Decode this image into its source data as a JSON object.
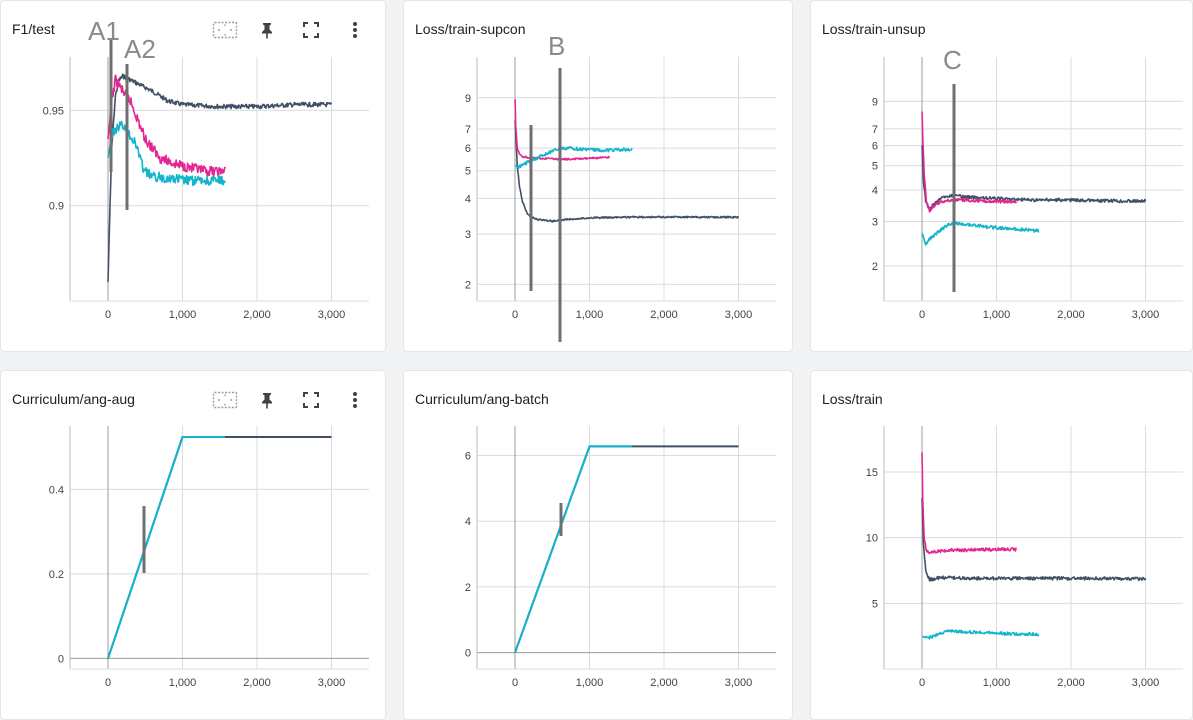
{
  "panels": [
    {
      "title": "F1/test"
    },
    {
      "title": "Loss/train-supcon"
    },
    {
      "title": "Loss/train-unsup"
    },
    {
      "title": "Curriculum/ang-aug"
    },
    {
      "title": "Curriculum/ang-batch"
    },
    {
      "title": "Loss/train"
    }
  ],
  "toolbar_icons": [
    "fit-domain-icon",
    "pin-icon",
    "fullscreen-icon",
    "more-vert-icon"
  ],
  "annotations": {
    "a1": "A1",
    "a2": "A2",
    "b": "B",
    "c": "C"
  },
  "colors": {
    "dark": "#425066",
    "pink": "#e52592",
    "cyan": "#12b5cb",
    "marker": "#6f6f6f"
  },
  "chart_data": [
    {
      "type": "line",
      "title": "F1/test",
      "x_ticks": [
        "0",
        "1,000",
        "2,000",
        "3,000"
      ],
      "y_ticks": [
        "0.95",
        "0.9"
      ],
      "ylim": [
        0.85,
        0.978
      ],
      "series": [
        {
          "color": "#425066",
          "x": [
            0,
            20,
            50,
            100,
            150,
            200,
            300,
            450,
            600,
            800,
            1000,
            1500,
            2000,
            2500,
            3000
          ],
          "y": [
            0.86,
            0.89,
            0.93,
            0.958,
            0.966,
            0.968,
            0.966,
            0.963,
            0.96,
            0.955,
            0.953,
            0.952,
            0.952,
            0.953,
            0.953
          ]
        },
        {
          "color": "#e52592",
          "x": [
            0,
            50,
            100,
            150,
            200,
            300,
            400,
            500,
            700,
            900,
            1100,
            1300,
            1570
          ],
          "y": [
            0.935,
            0.955,
            0.966,
            0.963,
            0.96,
            0.955,
            0.945,
            0.935,
            0.925,
            0.922,
            0.92,
            0.918,
            0.918
          ]
        },
        {
          "color": "#12b5cb",
          "x": [
            0,
            50,
            100,
            150,
            200,
            300,
            400,
            450,
            500,
            600,
            700,
            900,
            1100,
            1300,
            1570
          ],
          "y": [
            0.925,
            0.937,
            0.94,
            0.942,
            0.942,
            0.937,
            0.93,
            0.922,
            0.918,
            0.915,
            0.915,
            0.914,
            0.913,
            0.913,
            0.913
          ]
        }
      ]
    },
    {
      "type": "line",
      "title": "Loss/train-supcon",
      "y_scale": "log",
      "x_ticks": [
        "0",
        "1,000",
        "2,000",
        "3,000"
      ],
      "y_ticks": [
        "9",
        "7",
        "6",
        "5",
        "4",
        "3",
        "2"
      ],
      "ylim": [
        1.75,
        12.5
      ],
      "series": [
        {
          "color": "#425066",
          "x": [
            0,
            30,
            60,
            100,
            150,
            200,
            300,
            500,
            700,
            1000,
            1500,
            2000,
            2500,
            3000
          ],
          "y": [
            7.5,
            5.2,
            4.4,
            3.9,
            3.6,
            3.45,
            3.38,
            3.33,
            3.38,
            3.42,
            3.44,
            3.44,
            3.44,
            3.44
          ]
        },
        {
          "color": "#e52592",
          "x": [
            0,
            10,
            30,
            60,
            100,
            200,
            400,
            600,
            800,
            1000,
            1270
          ],
          "y": [
            8.9,
            7.2,
            6.0,
            5.7,
            5.6,
            5.55,
            5.52,
            5.48,
            5.5,
            5.52,
            5.58
          ]
        },
        {
          "color": "#12b5cb",
          "x": [
            0,
            50,
            100,
            200,
            300,
            400,
            500,
            600,
            700,
            900,
            1100,
            1300,
            1570
          ],
          "y": [
            5.2,
            5.15,
            5.25,
            5.4,
            5.55,
            5.7,
            5.85,
            5.95,
            6.0,
            5.95,
            5.9,
            5.9,
            5.95
          ]
        }
      ]
    },
    {
      "type": "line",
      "title": "Loss/train-unsup",
      "y_scale": "log",
      "x_ticks": [
        "0",
        "1,000",
        "2,000",
        "3,000"
      ],
      "y_ticks": [
        "9",
        "7",
        "6",
        "5",
        "4",
        "3",
        "2"
      ],
      "ylim": [
        1.45,
        13.5
      ],
      "series": [
        {
          "color": "#425066",
          "x": [
            0,
            20,
            50,
            100,
            150,
            250,
            400,
            600,
            1000,
            1500,
            2000,
            2500,
            3000
          ],
          "y": [
            6.0,
            4.3,
            3.6,
            3.35,
            3.5,
            3.7,
            3.8,
            3.75,
            3.7,
            3.65,
            3.65,
            3.62,
            3.62
          ]
        },
        {
          "color": "#e52592",
          "x": [
            0,
            10,
            30,
            60,
            100,
            150,
            250,
            400,
            600,
            800,
            1000,
            1270
          ],
          "y": [
            8.2,
            6.5,
            4.6,
            3.6,
            3.3,
            3.45,
            3.6,
            3.65,
            3.65,
            3.62,
            3.6,
            3.6
          ]
        },
        {
          "color": "#12b5cb",
          "x": [
            0,
            50,
            100,
            200,
            300,
            400,
            500,
            700,
            900,
            1100,
            1300,
            1570
          ],
          "y": [
            2.7,
            2.45,
            2.55,
            2.7,
            2.85,
            2.95,
            2.95,
            2.9,
            2.85,
            2.82,
            2.8,
            2.75
          ]
        }
      ]
    },
    {
      "type": "line",
      "title": "Curriculum/ang-aug",
      "x_ticks": [
        "0",
        "1,000",
        "2,000",
        "3,000"
      ],
      "y_ticks": [
        "0.4",
        "0.2",
        "0"
      ],
      "ylim": [
        -0.025,
        0.55
      ],
      "series": [
        {
          "color": "#425066",
          "x": [
            0,
            1000,
            3000
          ],
          "y": [
            0,
            0.524,
            0.524
          ]
        },
        {
          "color": "#12b5cb",
          "x": [
            0,
            1000,
            1570
          ],
          "y": [
            0,
            0.524,
            0.524
          ]
        }
      ]
    },
    {
      "type": "line",
      "title": "Curriculum/ang-batch",
      "x_ticks": [
        "0",
        "1,000",
        "2,000",
        "3,000"
      ],
      "y_ticks": [
        "6",
        "4",
        "2",
        "0"
      ],
      "ylim": [
        -0.5,
        6.9
      ],
      "series": [
        {
          "color": "#425066",
          "x": [
            0,
            1000,
            3000
          ],
          "y": [
            0,
            6.28,
            6.28
          ]
        },
        {
          "color": "#12b5cb",
          "x": [
            0,
            1000,
            1570
          ],
          "y": [
            0,
            6.28,
            6.28
          ]
        }
      ]
    },
    {
      "type": "line",
      "title": "Loss/train",
      "x_ticks": [
        "0",
        "1,000",
        "2,000",
        "3,000"
      ],
      "y_ticks": [
        "15",
        "10",
        "5"
      ],
      "ylim": [
        0,
        18.5
      ],
      "series": [
        {
          "color": "#425066",
          "x": [
            0,
            20,
            50,
            100,
            150,
            250,
            400,
            700,
            1000,
            1500,
            2000,
            2500,
            3000
          ],
          "y": [
            13.0,
            9.5,
            7.5,
            6.8,
            6.85,
            6.95,
            6.95,
            6.9,
            6.9,
            6.9,
            6.9,
            6.9,
            6.85
          ]
        },
        {
          "color": "#e52592",
          "x": [
            0,
            10,
            30,
            60,
            100,
            150,
            250,
            400,
            600,
            800,
            1000,
            1270
          ],
          "y": [
            16.5,
            13.0,
            10.0,
            9.0,
            8.8,
            8.9,
            9.0,
            9.05,
            9.05,
            9.1,
            9.1,
            9.1
          ]
        },
        {
          "color": "#12b5cb",
          "x": [
            0,
            50,
            100,
            200,
            300,
            400,
            500,
            700,
            900,
            1100,
            1300,
            1570
          ],
          "y": [
            2.5,
            2.35,
            2.4,
            2.6,
            2.8,
            2.9,
            2.85,
            2.8,
            2.75,
            2.7,
            2.68,
            2.65
          ]
        }
      ]
    }
  ]
}
